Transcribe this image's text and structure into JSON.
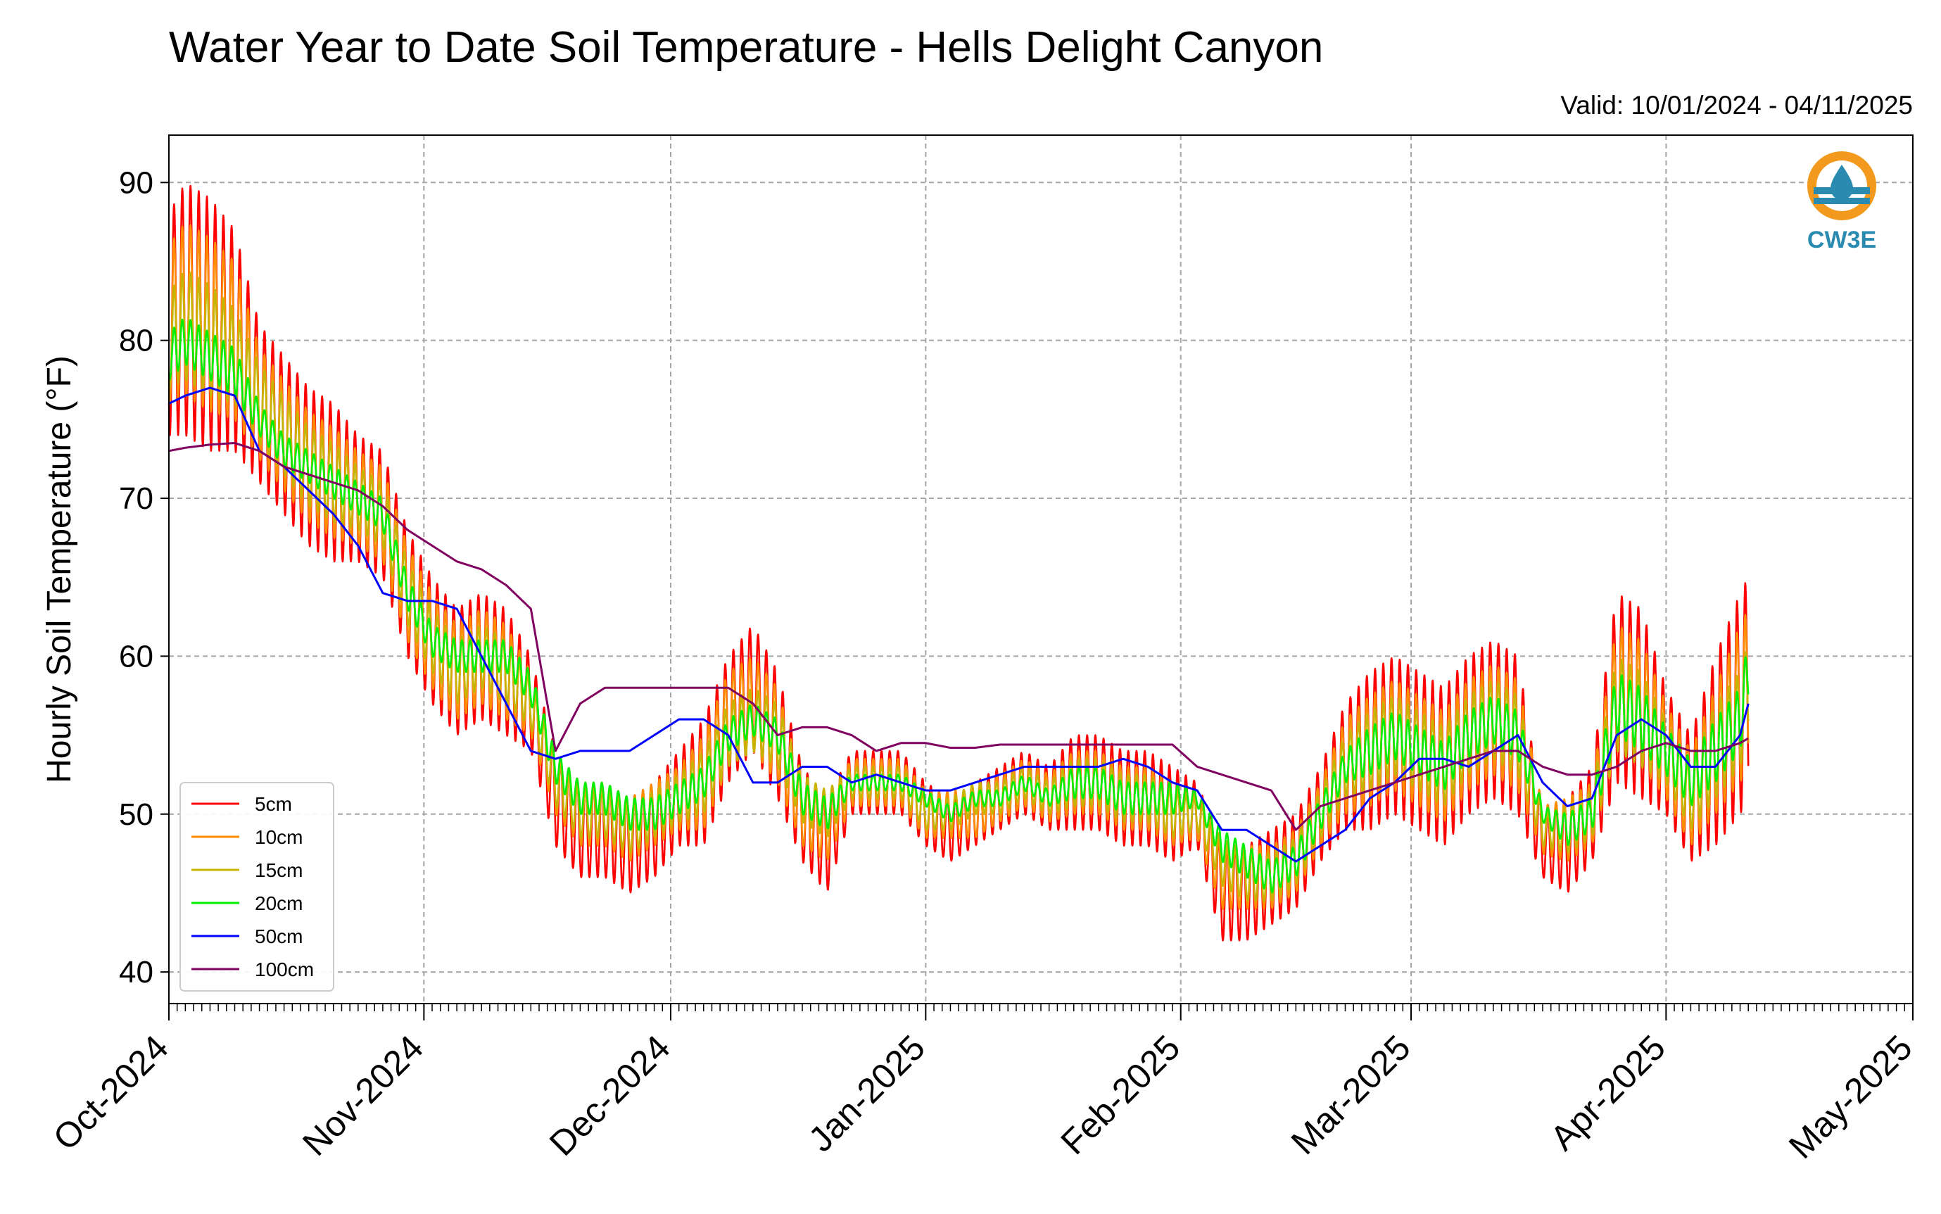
{
  "chart_data": {
    "type": "line",
    "title": "Water Year to Date Soil Temperature - Hells Delight Canyon",
    "subtitle": "Valid: 10/01/2024 - 04/11/2025",
    "ylabel": "Hourly Soil Temperature (°F)",
    "xlabel": "",
    "ylim": [
      38,
      93
    ],
    "xlim": [
      "2024-10-01",
      "2025-05-01"
    ],
    "yticks": [
      40,
      50,
      60,
      70,
      80,
      90
    ],
    "xticks": [
      "2024-10-01",
      "2024-11-01",
      "2024-12-01",
      "2025-01-01",
      "2025-02-01",
      "2025-03-01",
      "2025-04-01",
      "2025-05-01"
    ],
    "xtick_labels": [
      "Oct-2024",
      "Nov-2024",
      "Dec-2024",
      "Jan-2025",
      "Feb-2025",
      "Mar-2025",
      "Apr-2025",
      "May-2025"
    ],
    "grid": true,
    "legend_position": "lower-left",
    "dates": [
      "2024-10-01",
      "2024-10-03",
      "2024-10-06",
      "2024-10-09",
      "2024-10-12",
      "2024-10-15",
      "2024-10-18",
      "2024-10-21",
      "2024-10-24",
      "2024-10-27",
      "2024-10-30",
      "2024-11-02",
      "2024-11-05",
      "2024-11-08",
      "2024-11-11",
      "2024-11-14",
      "2024-11-17",
      "2024-11-20",
      "2024-11-23",
      "2024-11-26",
      "2024-11-29",
      "2024-12-02",
      "2024-12-05",
      "2024-12-08",
      "2024-12-11",
      "2024-12-14",
      "2024-12-17",
      "2024-12-20",
      "2024-12-23",
      "2024-12-26",
      "2024-12-29",
      "2025-01-01",
      "2025-01-04",
      "2025-01-07",
      "2025-01-10",
      "2025-01-13",
      "2025-01-16",
      "2025-01-19",
      "2025-01-22",
      "2025-01-25",
      "2025-01-28",
      "2025-01-31",
      "2025-02-03",
      "2025-02-06",
      "2025-02-09",
      "2025-02-12",
      "2025-02-15",
      "2025-02-18",
      "2025-02-21",
      "2025-02-24",
      "2025-02-27",
      "2025-03-02",
      "2025-03-05",
      "2025-03-08",
      "2025-03-11",
      "2025-03-14",
      "2025-03-17",
      "2025-03-20",
      "2025-03-23",
      "2025-03-26",
      "2025-03-29",
      "2025-04-01",
      "2025-04-04",
      "2025-04-07",
      "2025-04-10",
      "2025-04-11"
    ],
    "series": [
      {
        "name": "5cm",
        "color": "#ff0000",
        "mean": [
          81,
          82,
          81,
          80,
          76,
          74,
          72,
          71,
          70,
          69,
          64,
          61,
          59,
          60,
          59,
          57,
          51,
          49,
          49,
          48,
          49,
          51,
          52,
          56,
          58,
          55,
          50,
          48,
          52,
          52,
          52,
          50,
          49,
          50,
          51,
          52,
          51,
          52,
          52,
          51,
          51,
          50,
          50,
          45,
          45,
          46,
          47,
          50,
          53,
          54,
          55,
          54,
          53,
          55,
          56,
          55,
          48,
          48,
          50,
          58,
          57,
          54,
          51,
          54,
          57,
          58
        ],
        "amp": [
          7,
          8,
          8,
          7,
          5,
          5,
          5,
          5,
          4,
          4,
          4,
          4,
          4,
          4,
          4,
          3,
          3,
          3,
          3,
          3,
          3,
          3,
          4,
          4,
          4,
          4,
          3,
          3,
          2,
          2,
          2,
          2,
          2,
          2,
          2,
          2,
          2,
          3,
          3,
          3,
          3,
          3,
          2,
          3,
          3,
          3,
          3,
          3,
          4,
          5,
          5,
          5,
          5,
          5,
          5,
          5,
          2,
          3,
          3,
          6,
          6,
          4,
          4,
          6,
          7,
          7
        ]
      },
      {
        "name": "10cm",
        "color": "#ff8c00",
        "mean": [
          81,
          82,
          81,
          80,
          76,
          74,
          72,
          71,
          70,
          69,
          64,
          61,
          59,
          60,
          59,
          57,
          52,
          50,
          50,
          49,
          50,
          51,
          52,
          56,
          57,
          55,
          50,
          49,
          52,
          52,
          52,
          50,
          50,
          50,
          51,
          52,
          51,
          52,
          52,
          51,
          51,
          50,
          50,
          46,
          46,
          46,
          47,
          50,
          53,
          54,
          55,
          54,
          53,
          55,
          56,
          55,
          49,
          49,
          50,
          58,
          57,
          54,
          51,
          54,
          57,
          58
        ],
        "amp": [
          5,
          5.5,
          5.5,
          5,
          3.5,
          3.5,
          3.5,
          3.5,
          3,
          3,
          3,
          3,
          3,
          3,
          3,
          2,
          2,
          2,
          2,
          2,
          2,
          2,
          3,
          3,
          3,
          3,
          2,
          2,
          1.5,
          1.5,
          1.5,
          1.5,
          1.5,
          1.5,
          1.5,
          1.5,
          1.5,
          2,
          2,
          2,
          2,
          2,
          1.5,
          2,
          2,
          2,
          2,
          2,
          3,
          3.5,
          3.5,
          3.5,
          3.5,
          3.5,
          3.5,
          3.5,
          1.5,
          2,
          2,
          4,
          4,
          3,
          3,
          4,
          5,
          5
        ]
      },
      {
        "name": "15cm",
        "color": "#c8b400",
        "mean": [
          80,
          81,
          80,
          79,
          76,
          74,
          72,
          71,
          70,
          69,
          64,
          61,
          59,
          60,
          59,
          57,
          52,
          50,
          50,
          49,
          50,
          51,
          52,
          55,
          56,
          55,
          51,
          50,
          52,
          52,
          52,
          50,
          50,
          51,
          51,
          52,
          51,
          52,
          52,
          51,
          51,
          50,
          50,
          47,
          46,
          46,
          47,
          50,
          53,
          54,
          55,
          54,
          53,
          55,
          56,
          55,
          49,
          49,
          50,
          57,
          56,
          54,
          51,
          54,
          56,
          58
        ],
        "amp": [
          3,
          3.5,
          3.5,
          3,
          2.5,
          2.5,
          2.5,
          2.5,
          2,
          2,
          2,
          2,
          2,
          2,
          2,
          1.5,
          1.5,
          1.5,
          1.5,
          1.5,
          1.5,
          1.5,
          2,
          2,
          2,
          2,
          1.5,
          1.5,
          1,
          1,
          1,
          1,
          1,
          1,
          1,
          1,
          1,
          1.5,
          1.5,
          1.5,
          1.5,
          1.5,
          1,
          1.5,
          1.5,
          1.5,
          1.5,
          1.5,
          2,
          2.5,
          2.5,
          2.5,
          2.5,
          2.5,
          2.5,
          2.5,
          1,
          1.5,
          1.5,
          3,
          3,
          2,
          2,
          3,
          3,
          3
        ]
      },
      {
        "name": "20cm",
        "color": "#00ee00",
        "mean": [
          79,
          80,
          79,
          78,
          75,
          73,
          72,
          71,
          70,
          69,
          64,
          61,
          60,
          60,
          60,
          58,
          53,
          51,
          51,
          50,
          50,
          51,
          52,
          55,
          56,
          55,
          51,
          50,
          52,
          52,
          52,
          51,
          50,
          51,
          51,
          52,
          51,
          52,
          52,
          51,
          51,
          51,
          51,
          48,
          47,
          46,
          47,
          50,
          53,
          54,
          55,
          54,
          53,
          55,
          56,
          55,
          50,
          49,
          50,
          57,
          56,
          54,
          52,
          54,
          56,
          59
        ],
        "amp": [
          1.5,
          1.5,
          1.5,
          1.5,
          1,
          1,
          1,
          1,
          1,
          1,
          1,
          1,
          1,
          1,
          1,
          1,
          1,
          1,
          1,
          1,
          1,
          1,
          1,
          1,
          1,
          1,
          1,
          1,
          0.5,
          0.5,
          0.5,
          0.5,
          0.5,
          0.5,
          0.5,
          0.5,
          0.5,
          1,
          1,
          1,
          1,
          1,
          0.5,
          1,
          1,
          1,
          1,
          1,
          1,
          1.5,
          1.5,
          1.5,
          1.5,
          1.5,
          1.5,
          1.5,
          0.5,
          1,
          1,
          2,
          2,
          1.5,
          1.5,
          2,
          2,
          2
        ]
      },
      {
        "name": "50cm",
        "color": "#0000ff",
        "mean": [
          76,
          76.5,
          77,
          76.5,
          73,
          72,
          70.5,
          69,
          67,
          64,
          63.5,
          63.5,
          63,
          60,
          57,
          54,
          53.5,
          54,
          54,
          54,
          55,
          56,
          56,
          55,
          52,
          52,
          53,
          53,
          52,
          52.5,
          52,
          51.5,
          51.5,
          52,
          52.5,
          53,
          53,
          53,
          53,
          53.5,
          53,
          52,
          51.5,
          49,
          49,
          48,
          47,
          48,
          49,
          51,
          52,
          53.5,
          53.5,
          53,
          54,
          55,
          52,
          50.5,
          51,
          55,
          56,
          55,
          53,
          53,
          55,
          57
        ],
        "amp": [
          0,
          0,
          0,
          0,
          0,
          0,
          0,
          0,
          0,
          0,
          0,
          0,
          0,
          0,
          0,
          0,
          0,
          0,
          0,
          0,
          0,
          0,
          0,
          0,
          0,
          0,
          0,
          0,
          0,
          0,
          0,
          0,
          0,
          0,
          0,
          0,
          0,
          0,
          0,
          0,
          0,
          0,
          0,
          0,
          0,
          0,
          0,
          0,
          0,
          0,
          0,
          0,
          0,
          0,
          0,
          0,
          0,
          0,
          0,
          0,
          0,
          0,
          0,
          0,
          0,
          0
        ]
      },
      {
        "name": "100cm",
        "color": "#800060",
        "mean": [
          73,
          73.2,
          73.4,
          73.5,
          73,
          72,
          71.5,
          71,
          70.5,
          69.5,
          68,
          67,
          66,
          65.5,
          64.5,
          63,
          54,
          57,
          58,
          58,
          58,
          58,
          58,
          58,
          57,
          55,
          55.5,
          55.5,
          55,
          54,
          54.5,
          54.5,
          54.2,
          54.2,
          54.4,
          54.4,
          54.4,
          54.4,
          54.4,
          54.4,
          54.4,
          54.4,
          53,
          52.5,
          52,
          51.5,
          49,
          50.5,
          51,
          51.5,
          52,
          52.5,
          53,
          53.5,
          54,
          54,
          53,
          52.5,
          52.5,
          53,
          54,
          54.5,
          54,
          54,
          54.5,
          54.8
        ],
        "amp": [
          0,
          0,
          0,
          0,
          0,
          0,
          0,
          0,
          0,
          0,
          0,
          0,
          0,
          0,
          0,
          0,
          0,
          0,
          0,
          0,
          0,
          0,
          0,
          0,
          0,
          0,
          0,
          0,
          0,
          0,
          0,
          0,
          0,
          0,
          0,
          0,
          0,
          0,
          0,
          0,
          0,
          0,
          0,
          0,
          0,
          0,
          0,
          0,
          0,
          0,
          0,
          0,
          0,
          0,
          0,
          0,
          0,
          0,
          0,
          0,
          0,
          0,
          0,
          0,
          0,
          0
        ]
      }
    ]
  },
  "logo": {
    "text": "CW3E",
    "color_ring": "#f39a1e",
    "color_text": "#2b8ab0"
  }
}
